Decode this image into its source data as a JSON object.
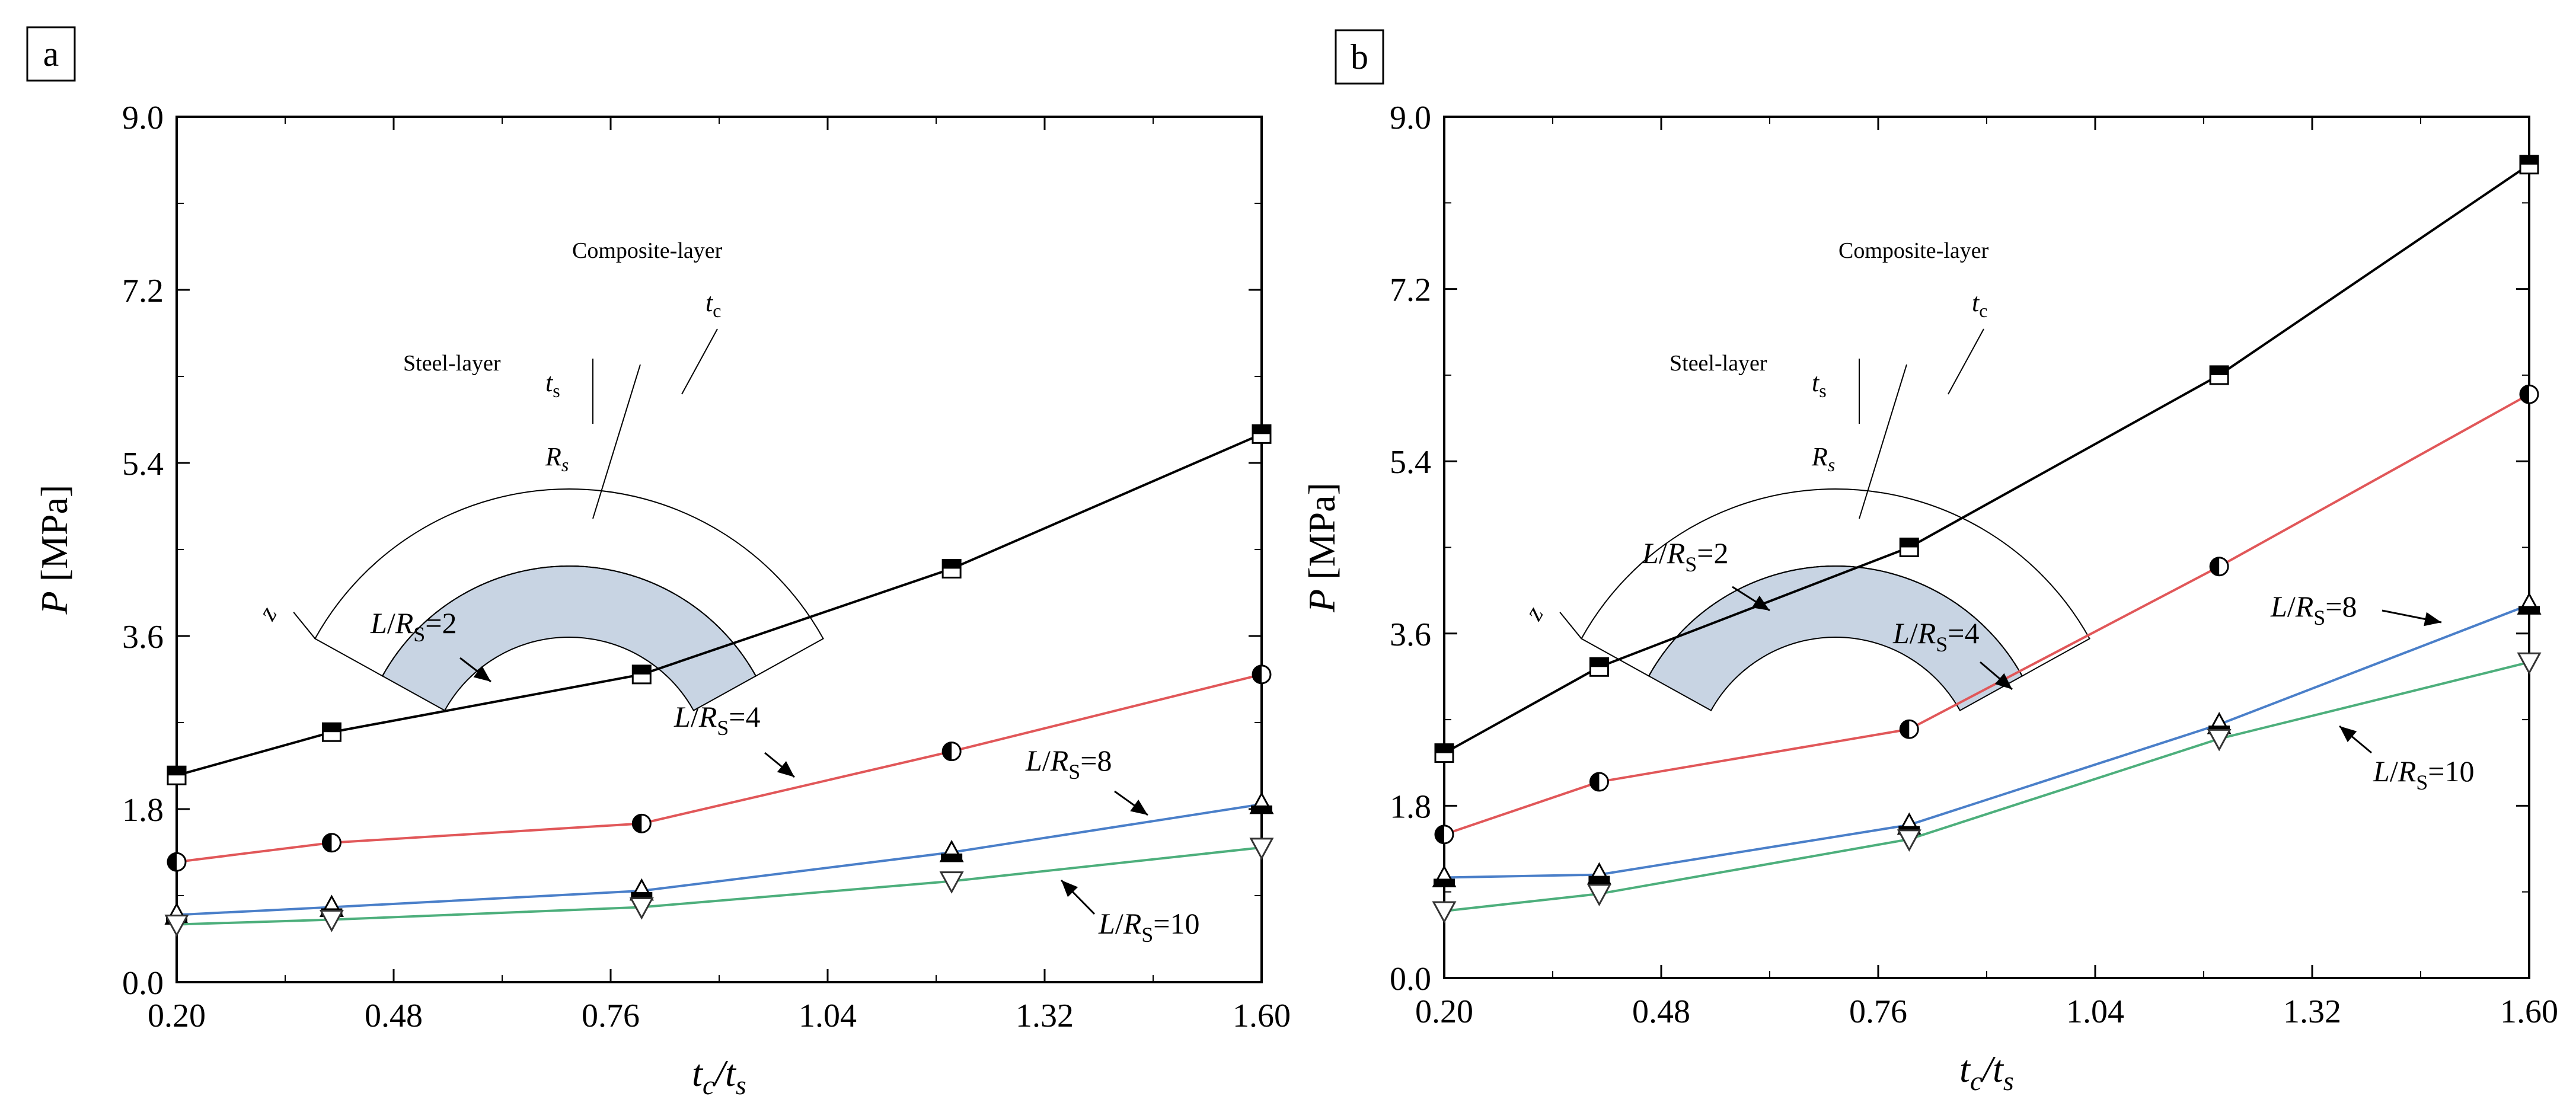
{
  "figure": {
    "panel_labels": [
      "a",
      "b"
    ],
    "x_axis": {
      "label_base": "t",
      "label_sub1": "c",
      "label_mid": "/t",
      "label_sub2": "s"
    },
    "y_axis": {
      "label_italic": "P",
      "label_unit": "[MPa]"
    },
    "x_ticks": [
      "0.20",
      "0.48",
      "0.76",
      "1.04",
      "1.32",
      "1.60"
    ],
    "y_ticks": [
      "0.0",
      "1.8",
      "3.6",
      "5.4",
      "7.2",
      "9.0"
    ],
    "inset": {
      "composite_label": "Composite-layer",
      "steel_label": "Steel-layer",
      "tc_base": "t",
      "tc_sub": "c",
      "ts_base": "t",
      "ts_sub": "s",
      "rs_base": "R",
      "rs_sub": "s",
      "z_label": "z",
      "steel_fill": "#c8d4e3"
    },
    "series_label_parts": {
      "prefix": "L",
      "slash": "/",
      "R": "R",
      "sub": "S"
    }
  },
  "chart_data": [
    {
      "type": "line",
      "panel": "a",
      "x": [
        0.2,
        0.4,
        0.8,
        1.2,
        1.6
      ],
      "xlim": [
        0.2,
        1.6
      ],
      "ylim": [
        0.0,
        9.0
      ],
      "grid": false,
      "series": [
        {
          "name": "L/RS=2",
          "ratio": "2",
          "color": "#000000",
          "marker": "square-half",
          "values": [
            2.15,
            2.6,
            3.2,
            4.3,
            5.7
          ]
        },
        {
          "name": "L/RS=4",
          "ratio": "4",
          "color": "#e15759",
          "marker": "circle-half",
          "values": [
            1.25,
            1.45,
            1.65,
            2.4,
            3.2
          ]
        },
        {
          "name": "L/RS=8",
          "ratio": "8",
          "color": "#4a7fc9",
          "marker": "triangle-half",
          "values": [
            0.7,
            0.78,
            0.95,
            1.35,
            1.85
          ]
        },
        {
          "name": "L/RS=10",
          "ratio": "10",
          "color": "#4daf7c",
          "marker": "triangle-down",
          "values": [
            0.6,
            0.65,
            0.78,
            1.05,
            1.4
          ]
        }
      ]
    },
    {
      "type": "line",
      "panel": "b",
      "x": [
        0.2,
        0.4,
        0.8,
        1.2,
        1.6
      ],
      "xlim": [
        0.2,
        1.6
      ],
      "ylim": [
        0.0,
        9.0
      ],
      "grid": false,
      "series": [
        {
          "name": "L/RS=2",
          "ratio": "2",
          "color": "#000000",
          "marker": "square-half",
          "values": [
            2.35,
            3.25,
            4.5,
            6.3,
            8.5
          ]
        },
        {
          "name": "L/RS=4",
          "ratio": "4",
          "color": "#e15759",
          "marker": "circle-half",
          "values": [
            1.5,
            2.05,
            2.6,
            4.3,
            6.1
          ]
        },
        {
          "name": "L/RS=8",
          "ratio": "8",
          "color": "#4a7fc9",
          "marker": "triangle-half",
          "values": [
            1.05,
            1.08,
            1.6,
            2.65,
            3.9
          ]
        },
        {
          "name": "L/RS=10",
          "ratio": "10",
          "color": "#4daf7c",
          "marker": "triangle-down",
          "values": [
            0.7,
            0.88,
            1.45,
            2.5,
            3.3
          ]
        }
      ]
    }
  ]
}
